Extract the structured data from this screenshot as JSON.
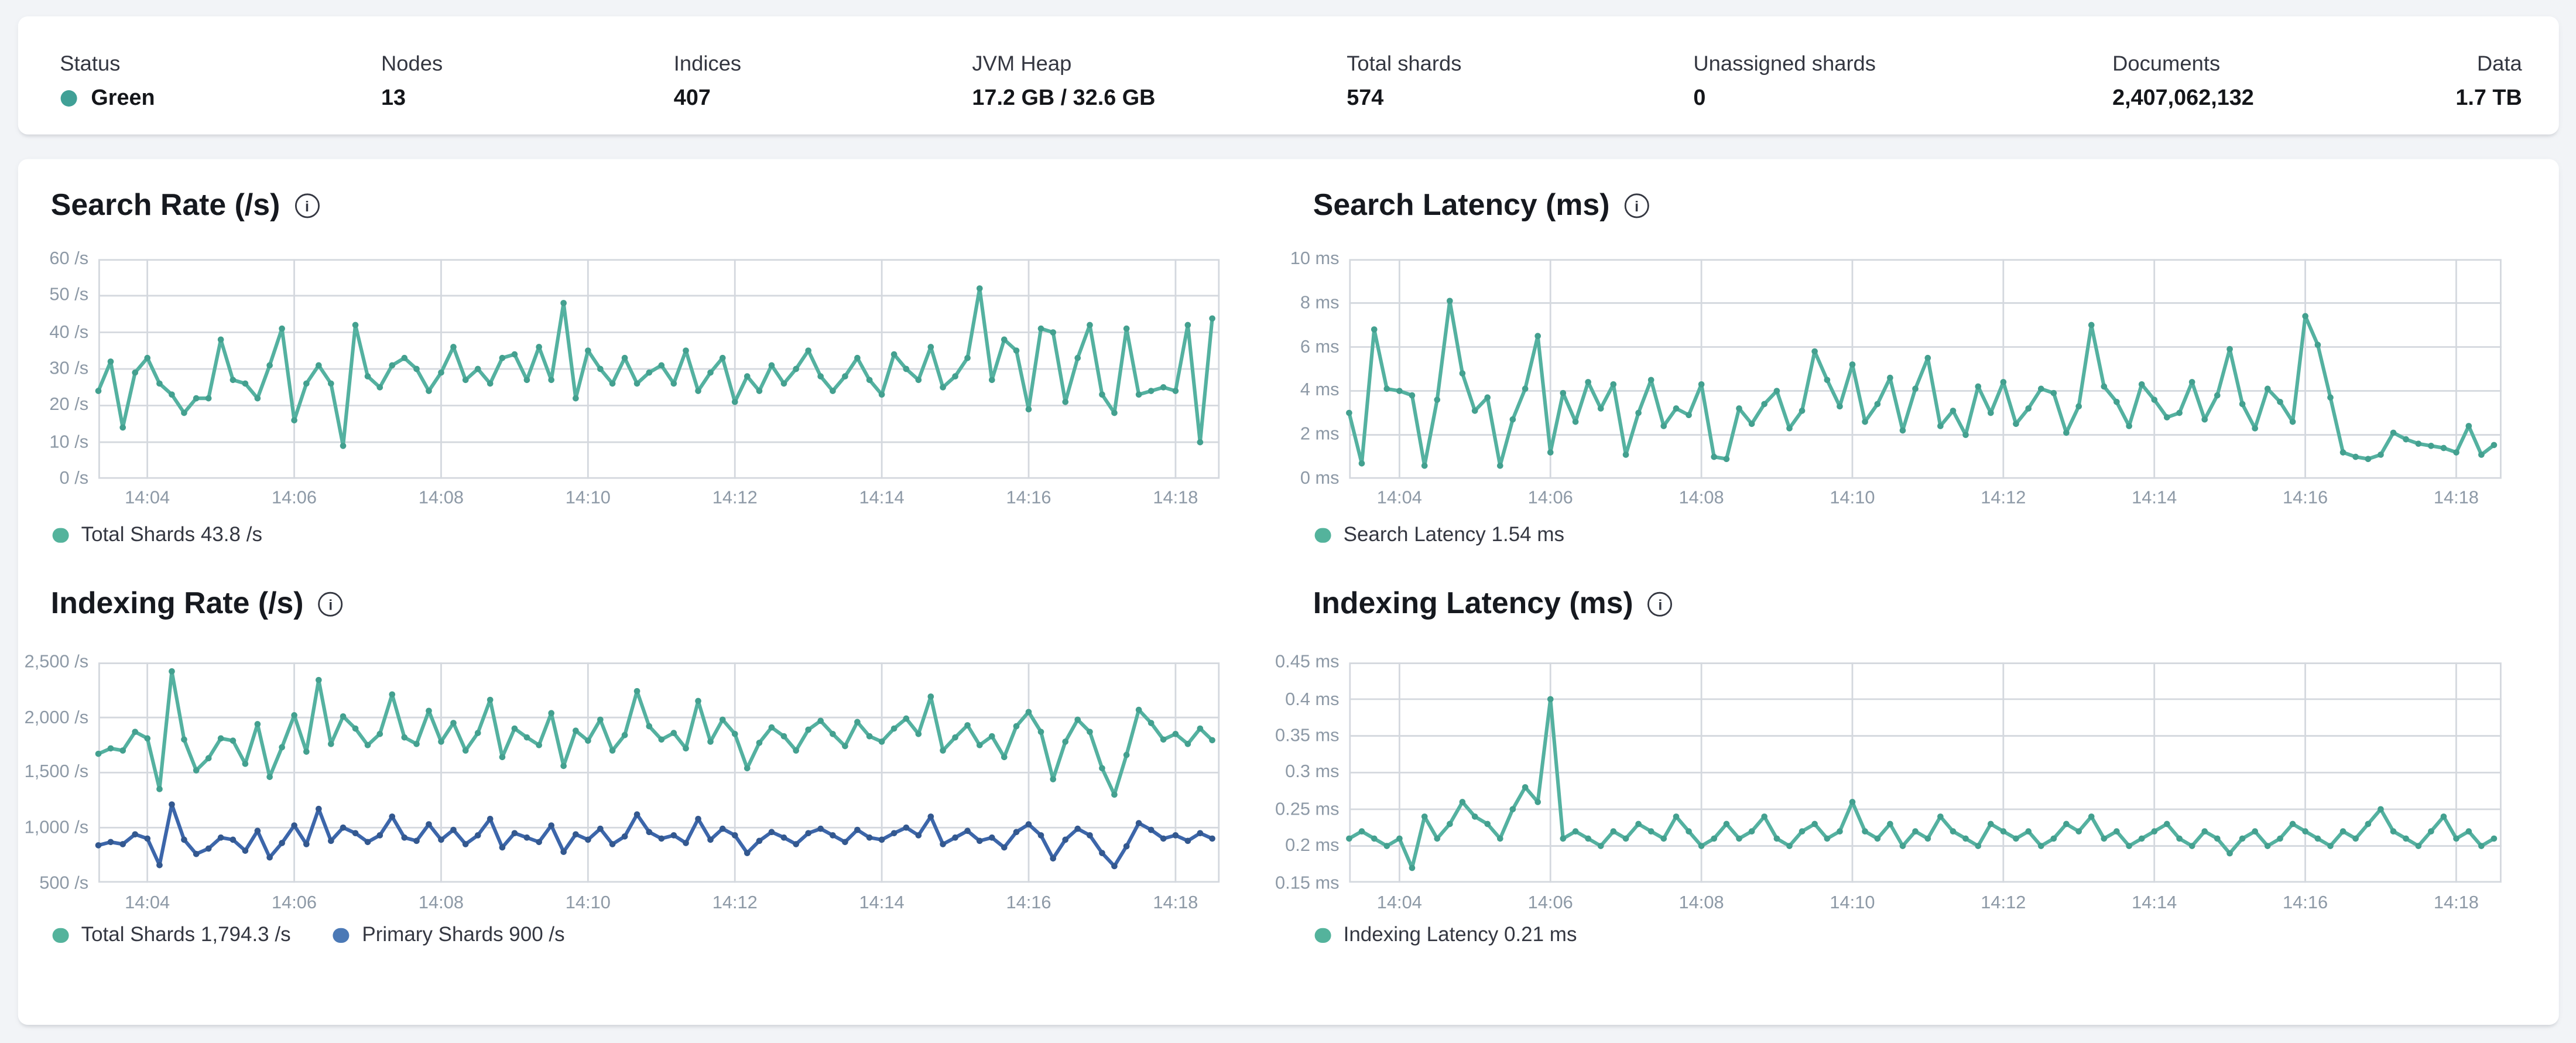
{
  "page": {
    "background": "#f2f4f7",
    "card_background": "#ffffff"
  },
  "status_bar": {
    "items": [
      {
        "id": "status",
        "label": "Status",
        "value": "Green",
        "dot_color": "#40a096"
      },
      {
        "id": "nodes",
        "label": "Nodes",
        "value": "13"
      },
      {
        "id": "indices",
        "label": "Indices",
        "value": "407"
      },
      {
        "id": "jvm-heap",
        "label": "JVM Heap",
        "value": "17.2 GB / 32.6 GB"
      },
      {
        "id": "total-shards",
        "label": "Total shards",
        "value": "574"
      },
      {
        "id": "unassigned-shards",
        "label": "Unassigned shards",
        "value": "0"
      },
      {
        "id": "documents",
        "label": "Documents",
        "value": "2,407,062,132"
      },
      {
        "id": "data",
        "label": "Data",
        "value": "1.7 TB"
      }
    ]
  },
  "colors": {
    "teal_line": "#54b1a0",
    "teal_dot": "#43a08f",
    "blue_line": "#3c66aa",
    "blue_dot": "#33588f",
    "grid": "#d4d8de",
    "tick_text": "#8d99a6"
  },
  "chart_data": [
    {
      "id": "search-rate",
      "type": "line",
      "title": "Search Rate (/s)",
      "info_icon": "i-in-circle",
      "ylim": [
        0,
        60
      ],
      "x_domain_seconds": [
        0,
        916
      ],
      "point_interval_seconds": 10,
      "grid": true,
      "legend_position": "bottom",
      "y_ticks": [
        {
          "v": 0,
          "label": "0 /s"
        },
        {
          "v": 10,
          "label": "10 /s"
        },
        {
          "v": 20,
          "label": "20 /s"
        },
        {
          "v": 30,
          "label": "30 /s"
        },
        {
          "v": 40,
          "label": "40 /s"
        },
        {
          "v": 50,
          "label": "50 /s"
        },
        {
          "v": 60,
          "label": "60 /s"
        }
      ],
      "x_ticks": [
        {
          "t": 40,
          "label": "14:04"
        },
        {
          "t": 160,
          "label": "14:06"
        },
        {
          "t": 280,
          "label": "14:08"
        },
        {
          "t": 400,
          "label": "14:10"
        },
        {
          "t": 520,
          "label": "14:12"
        },
        {
          "t": 640,
          "label": "14:14"
        },
        {
          "t": 760,
          "label": "14:16"
        },
        {
          "t": 880,
          "label": "14:18"
        }
      ],
      "series": [
        {
          "name": "Total Shards",
          "legend_label": "Total Shards 43.8 /s",
          "color": "#54b1a0",
          "dot_color": "#43a08f",
          "legend_color": "#54b39c",
          "values": [
            24,
            32,
            14,
            29,
            33,
            26,
            23,
            18,
            22,
            22,
            38,
            27,
            26,
            22,
            31,
            41,
            16,
            26,
            31,
            26,
            9,
            42,
            28,
            25,
            31,
            33,
            30,
            24,
            29,
            36,
            27,
            30,
            26,
            33,
            34,
            27,
            36,
            27,
            48,
            22,
            35,
            30,
            26,
            33,
            26,
            29,
            31,
            26,
            35,
            24,
            29,
            33,
            21,
            28,
            24,
            31,
            26,
            30,
            35,
            28,
            24,
            28,
            33,
            27,
            23,
            34,
            30,
            27,
            36,
            25,
            28,
            33,
            52,
            27,
            38,
            35,
            19,
            41,
            40,
            21,
            33,
            42,
            23,
            18,
            41,
            23,
            24,
            25,
            24,
            42,
            10,
            43.8
          ]
        }
      ]
    },
    {
      "id": "search-latency",
      "type": "line",
      "title": "Search Latency (ms)",
      "info_icon": "i-in-circle",
      "ylim": [
        0,
        10
      ],
      "x_domain_seconds": [
        0,
        916
      ],
      "point_interval_seconds": 10,
      "grid": true,
      "legend_position": "bottom",
      "y_ticks": [
        {
          "v": 0,
          "label": "0 ms"
        },
        {
          "v": 2,
          "label": "2 ms"
        },
        {
          "v": 4,
          "label": "4 ms"
        },
        {
          "v": 6,
          "label": "6 ms"
        },
        {
          "v": 8,
          "label": "8 ms"
        },
        {
          "v": 10,
          "label": "10 ms"
        }
      ],
      "x_ticks": [
        {
          "t": 40,
          "label": "14:04"
        },
        {
          "t": 160,
          "label": "14:06"
        },
        {
          "t": 280,
          "label": "14:08"
        },
        {
          "t": 400,
          "label": "14:10"
        },
        {
          "t": 520,
          "label": "14:12"
        },
        {
          "t": 640,
          "label": "14:14"
        },
        {
          "t": 760,
          "label": "14:16"
        },
        {
          "t": 880,
          "label": "14:18"
        }
      ],
      "series": [
        {
          "name": "Search Latency",
          "legend_label": "Search Latency 1.54 ms",
          "color": "#54b1a0",
          "dot_color": "#43a08f",
          "legend_color": "#54b39c",
          "values": [
            3,
            0.7,
            6.8,
            4.1,
            4,
            3.8,
            0.6,
            3.6,
            8.1,
            4.8,
            3.1,
            3.7,
            0.6,
            2.7,
            4.1,
            6.5,
            1.2,
            3.9,
            2.6,
            4.4,
            3.2,
            4.3,
            1.1,
            3,
            4.5,
            2.4,
            3.2,
            2.9,
            4.3,
            1,
            0.9,
            3.2,
            2.5,
            3.4,
            4,
            2.3,
            3.1,
            5.8,
            4.5,
            3.3,
            5.2,
            2.6,
            3.4,
            4.6,
            2.2,
            4.1,
            5.5,
            2.4,
            3.1,
            2,
            4.2,
            3,
            4.4,
            2.5,
            3.2,
            4.1,
            3.9,
            2.1,
            3.3,
            7,
            4.2,
            3.5,
            2.4,
            4.3,
            3.6,
            2.8,
            3,
            4.4,
            2.7,
            3.8,
            5.9,
            3.4,
            2.3,
            4.1,
            3.5,
            2.6,
            7.4,
            6.1,
            3.7,
            1.2,
            1,
            0.9,
            1.1,
            2.1,
            1.8,
            1.6,
            1.5,
            1.4,
            1.2,
            2.4,
            1.1,
            1.54
          ]
        }
      ]
    },
    {
      "id": "indexing-rate",
      "type": "line",
      "title": "Indexing Rate (/s)",
      "info_icon": "i-in-circle",
      "ylim": [
        500,
        2500
      ],
      "x_domain_seconds": [
        0,
        916
      ],
      "point_interval_seconds": 10,
      "grid": true,
      "legend_position": "bottom",
      "y_ticks": [
        {
          "v": 500,
          "label": "500 /s"
        },
        {
          "v": 1000,
          "label": "1,000 /s"
        },
        {
          "v": 1500,
          "label": "1,500 /s"
        },
        {
          "v": 2000,
          "label": "2,000 /s"
        },
        {
          "v": 2500,
          "label": "2,500 /s"
        }
      ],
      "x_ticks": [
        {
          "t": 40,
          "label": "14:04"
        },
        {
          "t": 160,
          "label": "14:06"
        },
        {
          "t": 280,
          "label": "14:08"
        },
        {
          "t": 400,
          "label": "14:10"
        },
        {
          "t": 520,
          "label": "14:12"
        },
        {
          "t": 640,
          "label": "14:14"
        },
        {
          "t": 760,
          "label": "14:16"
        },
        {
          "t": 880,
          "label": "14:18"
        }
      ],
      "series": [
        {
          "name": "Total Shards",
          "legend_label": "Total Shards 1,794.3 /s",
          "color": "#54b1a0",
          "dot_color": "#43a08f",
          "legend_color": "#54b39c",
          "values": [
            1670,
            1720,
            1700,
            1870,
            1810,
            1350,
            2420,
            1800,
            1520,
            1630,
            1810,
            1790,
            1580,
            1940,
            1460,
            1730,
            2020,
            1690,
            2340,
            1760,
            2010,
            1900,
            1750,
            1850,
            2210,
            1820,
            1760,
            2060,
            1780,
            1950,
            1700,
            1860,
            2160,
            1640,
            1900,
            1820,
            1750,
            2040,
            1560,
            1880,
            1790,
            1980,
            1700,
            1840,
            2240,
            1920,
            1800,
            1860,
            1720,
            2150,
            1780,
            1980,
            1850,
            1540,
            1770,
            1910,
            1830,
            1700,
            1890,
            1970,
            1850,
            1740,
            1960,
            1830,
            1780,
            1900,
            1990,
            1850,
            2190,
            1700,
            1820,
            1930,
            1750,
            1830,
            1640,
            1920,
            2050,
            1870,
            1440,
            1780,
            1980,
            1870,
            1540,
            1300,
            1660,
            2070,
            1950,
            1800,
            1850,
            1760,
            1900,
            1794.3
          ]
        },
        {
          "name": "Primary Shards",
          "legend_label": "Primary Shards 900 /s",
          "color": "#3c66aa",
          "dot_color": "#33588f",
          "legend_color": "#4b79b6",
          "values": [
            840,
            870,
            850,
            940,
            900,
            660,
            1210,
            890,
            760,
            810,
            910,
            890,
            790,
            970,
            730,
            860,
            1020,
            850,
            1170,
            880,
            1000,
            950,
            870,
            930,
            1100,
            910,
            880,
            1030,
            890,
            980,
            850,
            930,
            1080,
            820,
            950,
            910,
            870,
            1020,
            780,
            940,
            890,
            990,
            850,
            920,
            1120,
            960,
            900,
            930,
            860,
            1080,
            890,
            990,
            930,
            770,
            880,
            960,
            910,
            850,
            950,
            990,
            930,
            870,
            980,
            910,
            890,
            950,
            1000,
            930,
            1100,
            850,
            910,
            970,
            880,
            910,
            820,
            960,
            1030,
            930,
            720,
            890,
            990,
            930,
            770,
            650,
            830,
            1040,
            980,
            900,
            930,
            880,
            950,
            900
          ]
        }
      ]
    },
    {
      "id": "indexing-latency",
      "type": "line",
      "title": "Indexing Latency (ms)",
      "info_icon": "i-in-circle",
      "ylim": [
        0.15,
        0.45
      ],
      "x_domain_seconds": [
        0,
        916
      ],
      "point_interval_seconds": 10,
      "grid": true,
      "legend_position": "bottom",
      "y_ticks": [
        {
          "v": 0.15,
          "label": "0.15 ms"
        },
        {
          "v": 0.2,
          "label": "0.2 ms"
        },
        {
          "v": 0.25,
          "label": "0.25 ms"
        },
        {
          "v": 0.3,
          "label": "0.3 ms"
        },
        {
          "v": 0.35,
          "label": "0.35 ms"
        },
        {
          "v": 0.4,
          "label": "0.4 ms"
        },
        {
          "v": 0.45,
          "label": "0.45 ms"
        }
      ],
      "x_ticks": [
        {
          "t": 40,
          "label": "14:04"
        },
        {
          "t": 160,
          "label": "14:06"
        },
        {
          "t": 280,
          "label": "14:08"
        },
        {
          "t": 400,
          "label": "14:10"
        },
        {
          "t": 520,
          "label": "14:12"
        },
        {
          "t": 640,
          "label": "14:14"
        },
        {
          "t": 760,
          "label": "14:16"
        },
        {
          "t": 880,
          "label": "14:18"
        }
      ],
      "series": [
        {
          "name": "Indexing Latency",
          "legend_label": "Indexing Latency 0.21 ms",
          "color": "#54b1a0",
          "dot_color": "#43a08f",
          "legend_color": "#54b39c",
          "values": [
            0.21,
            0.22,
            0.21,
            0.2,
            0.21,
            0.17,
            0.24,
            0.21,
            0.23,
            0.26,
            0.24,
            0.23,
            0.21,
            0.25,
            0.28,
            0.26,
            0.4,
            0.21,
            0.22,
            0.21,
            0.2,
            0.22,
            0.21,
            0.23,
            0.22,
            0.21,
            0.24,
            0.22,
            0.2,
            0.21,
            0.23,
            0.21,
            0.22,
            0.24,
            0.21,
            0.2,
            0.22,
            0.23,
            0.21,
            0.22,
            0.26,
            0.22,
            0.21,
            0.23,
            0.2,
            0.22,
            0.21,
            0.24,
            0.22,
            0.21,
            0.2,
            0.23,
            0.22,
            0.21,
            0.22,
            0.2,
            0.21,
            0.23,
            0.22,
            0.24,
            0.21,
            0.22,
            0.2,
            0.21,
            0.22,
            0.23,
            0.21,
            0.2,
            0.22,
            0.21,
            0.19,
            0.21,
            0.22,
            0.2,
            0.21,
            0.23,
            0.22,
            0.21,
            0.2,
            0.22,
            0.21,
            0.23,
            0.25,
            0.22,
            0.21,
            0.2,
            0.22,
            0.24,
            0.21,
            0.22,
            0.2,
            0.21
          ]
        }
      ]
    }
  ]
}
